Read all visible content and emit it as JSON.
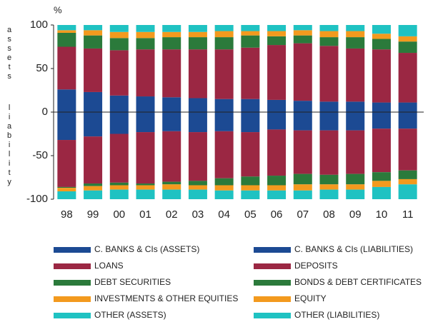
{
  "chart_data": {
    "type": "bar",
    "unit_label": "%",
    "y_label_top": "assets",
    "y_label_bottom": "liability",
    "categories": [
      "98",
      "99",
      "00",
      "01",
      "02",
      "03",
      "04",
      "05",
      "06",
      "07",
      "08",
      "09",
      "10",
      "11"
    ],
    "series": [
      {
        "name": "C. BANKS & CIs (ASSETS)",
        "color": "#1c4a93",
        "values": [
          26,
          23,
          19,
          18,
          17,
          16,
          15,
          15,
          14,
          13,
          12,
          12,
          11,
          11
        ]
      },
      {
        "name": "LOANS",
        "color": "#9b2743",
        "values": [
          49,
          50,
          52,
          54,
          55,
          56,
          57,
          59,
          63,
          66,
          64,
          61,
          61,
          57
        ]
      },
      {
        "name": "DEBT SECURITIES",
        "color": "#2b7a3b",
        "values": [
          16,
          15,
          14,
          13,
          14,
          14,
          14,
          14,
          10,
          9,
          10,
          13,
          12,
          13
        ]
      },
      {
        "name": "INVESTMENTS & OTHER EQUITIES",
        "color": "#f39a1e",
        "values": [
          3,
          6,
          7,
          7,
          6,
          6,
          7,
          5,
          6,
          6,
          7,
          7,
          6,
          6
        ]
      },
      {
        "name": "OTHER (ASSETS)",
        "color": "#1fc2c2",
        "values": [
          6,
          6,
          8,
          8,
          8,
          8,
          7,
          7,
          7,
          6,
          7,
          7,
          10,
          13
        ]
      },
      {
        "name": "C. BANKS & CIs (LIABILITIES)",
        "color": "#1c4a93",
        "values": [
          -32,
          -28,
          -25,
          -23,
          -22,
          -23,
          -22,
          -23,
          -20,
          -21,
          -21,
          -21,
          -19,
          -19
        ]
      },
      {
        "name": "DEPOSITS",
        "color": "#9b2743",
        "values": [
          -54,
          -54,
          -56,
          -59,
          -58,
          -56,
          -54,
          -51,
          -53,
          -50,
          -51,
          -50,
          -50,
          -48
        ]
      },
      {
        "name": "BONDS & DEBT CERTIFICATES",
        "color": "#2b7a3b",
        "values": [
          -1,
          -3,
          -3,
          -2,
          -3,
          -5,
          -8,
          -10,
          -11,
          -12,
          -11,
          -12,
          -10,
          -10
        ]
      },
      {
        "name": "EQUITY",
        "color": "#f39a1e",
        "values": [
          -4,
          -5,
          -5,
          -5,
          -6,
          -5,
          -6,
          -6,
          -6,
          -7,
          -6,
          -6,
          -7,
          -6
        ]
      },
      {
        "name": "OTHER (LIABILITIES)",
        "color": "#1fc2c2",
        "values": [
          -9,
          -10,
          -11,
          -11,
          -11,
          -11,
          -10,
          -10,
          -10,
          -10,
          -11,
          -11,
          -14,
          -17
        ]
      }
    ],
    "ylim": [
      -100,
      100
    ],
    "yticks": [
      100,
      50,
      0,
      -50,
      -100
    ]
  }
}
